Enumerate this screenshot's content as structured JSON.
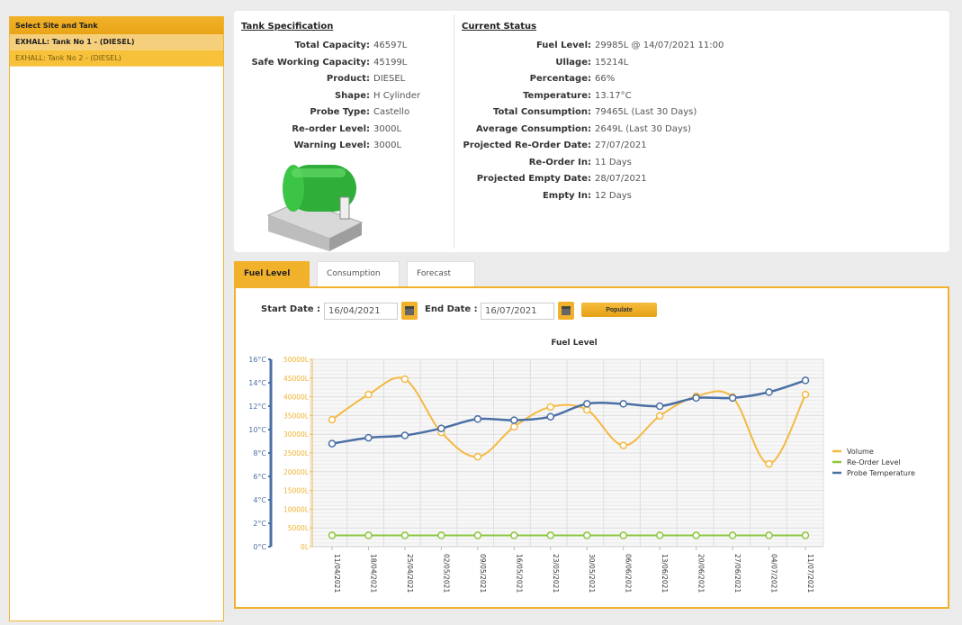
{
  "sidebar": {
    "header": "Select Site and Tank",
    "items": [
      {
        "label": "EXHALL: Tank No 1 - (DIESEL)",
        "selected": true
      },
      {
        "label": "EXHALL: Tank No 2 - (DIESEL)",
        "selected": false
      }
    ]
  },
  "spec": {
    "title": "Tank Specification",
    "rows": [
      {
        "k": "Total Capacity:",
        "v": "46597L"
      },
      {
        "k": "Safe Working Capacity:",
        "v": "45199L"
      },
      {
        "k": "Product:",
        "v": "DIESEL"
      },
      {
        "k": "Shape:",
        "v": "H Cylinder"
      },
      {
        "k": "Probe Type:",
        "v": "Castello"
      },
      {
        "k": "Re-order Level:",
        "v": "3000L"
      },
      {
        "k": "Warning Level:",
        "v": "3000L"
      }
    ]
  },
  "status": {
    "title": "Current Status",
    "rows": [
      {
        "k": "Fuel Level:",
        "v": "29985L @ 14/07/2021 11:00"
      },
      {
        "k": "Ullage:",
        "v": "15214L"
      },
      {
        "k": "Percentage:",
        "v": "66%"
      },
      {
        "k": "Temperature:",
        "v": "13.17°C"
      },
      {
        "k": "Total Consumption:",
        "v": "79465L (Last 30 Days)"
      },
      {
        "k": "Average Consumption:",
        "v": "2649L (Last 30 Days)"
      },
      {
        "k": "Projected Re-Order Date:",
        "v": "27/07/2021"
      },
      {
        "k": "Re-Order In:",
        "v": "11 Days"
      },
      {
        "k": "Projected Empty Date:",
        "v": "28/07/2021"
      },
      {
        "k": "Empty In:",
        "v": "12 Days"
      }
    ]
  },
  "tabs": [
    "Fuel Level",
    "Consumption",
    "Forecast"
  ],
  "filters": {
    "start_label": "Start Date :",
    "start_value": "16/04/2021",
    "end_label": "End Date :",
    "end_value": "16/07/2021",
    "populate": "Populate"
  },
  "colors": {
    "accent": "#f2b12a",
    "volume": "#f5b942",
    "reorder": "#8cc63f",
    "temp": "#4a6fa5"
  },
  "chart_data": {
    "type": "line",
    "title": "Fuel Level",
    "categories": [
      "11/04/2021",
      "18/04/2021",
      "25/04/2021",
      "02/05/2021",
      "09/05/2021",
      "16/05/2021",
      "23/05/2021",
      "30/05/2021",
      "06/06/2021",
      "13/06/2021",
      "20/06/2021",
      "27/06/2021",
      "04/07/2021",
      "11/07/2021"
    ],
    "series": [
      {
        "name": "Volume",
        "axis": "right",
        "values": [
          33900,
          40600,
          44700,
          30500,
          24000,
          32000,
          37300,
          36500,
          27000,
          34900,
          40100,
          39900,
          22100,
          40600
        ]
      },
      {
        "name": "Re-Order Level",
        "axis": "right",
        "values": [
          3000,
          3000,
          3000,
          3000,
          3000,
          3000,
          3000,
          3000,
          3000,
          3000,
          3000,
          3000,
          3000,
          3000
        ]
      },
      {
        "name": "Probe Temperature",
        "axis": "left",
        "values": [
          8.8,
          9.3,
          9.5,
          10.1,
          10.9,
          10.8,
          11.1,
          12.2,
          12.2,
          12.0,
          12.7,
          12.7,
          13.2,
          14.2
        ]
      }
    ],
    "temp_axis": {
      "range": [
        0,
        16
      ],
      "ticks": [
        "0°C",
        "2°C",
        "4°C",
        "6°C",
        "8°C",
        "10°C",
        "12°C",
        "14°C",
        "16°C"
      ]
    },
    "volume_axis": {
      "range": [
        0,
        50000
      ],
      "ticks": [
        "0L",
        "5000L",
        "10000L",
        "15000L",
        "20000L",
        "25000L",
        "30000L",
        "35000L",
        "40000L",
        "45000L",
        "50000L"
      ]
    },
    "legend_position": "right"
  }
}
